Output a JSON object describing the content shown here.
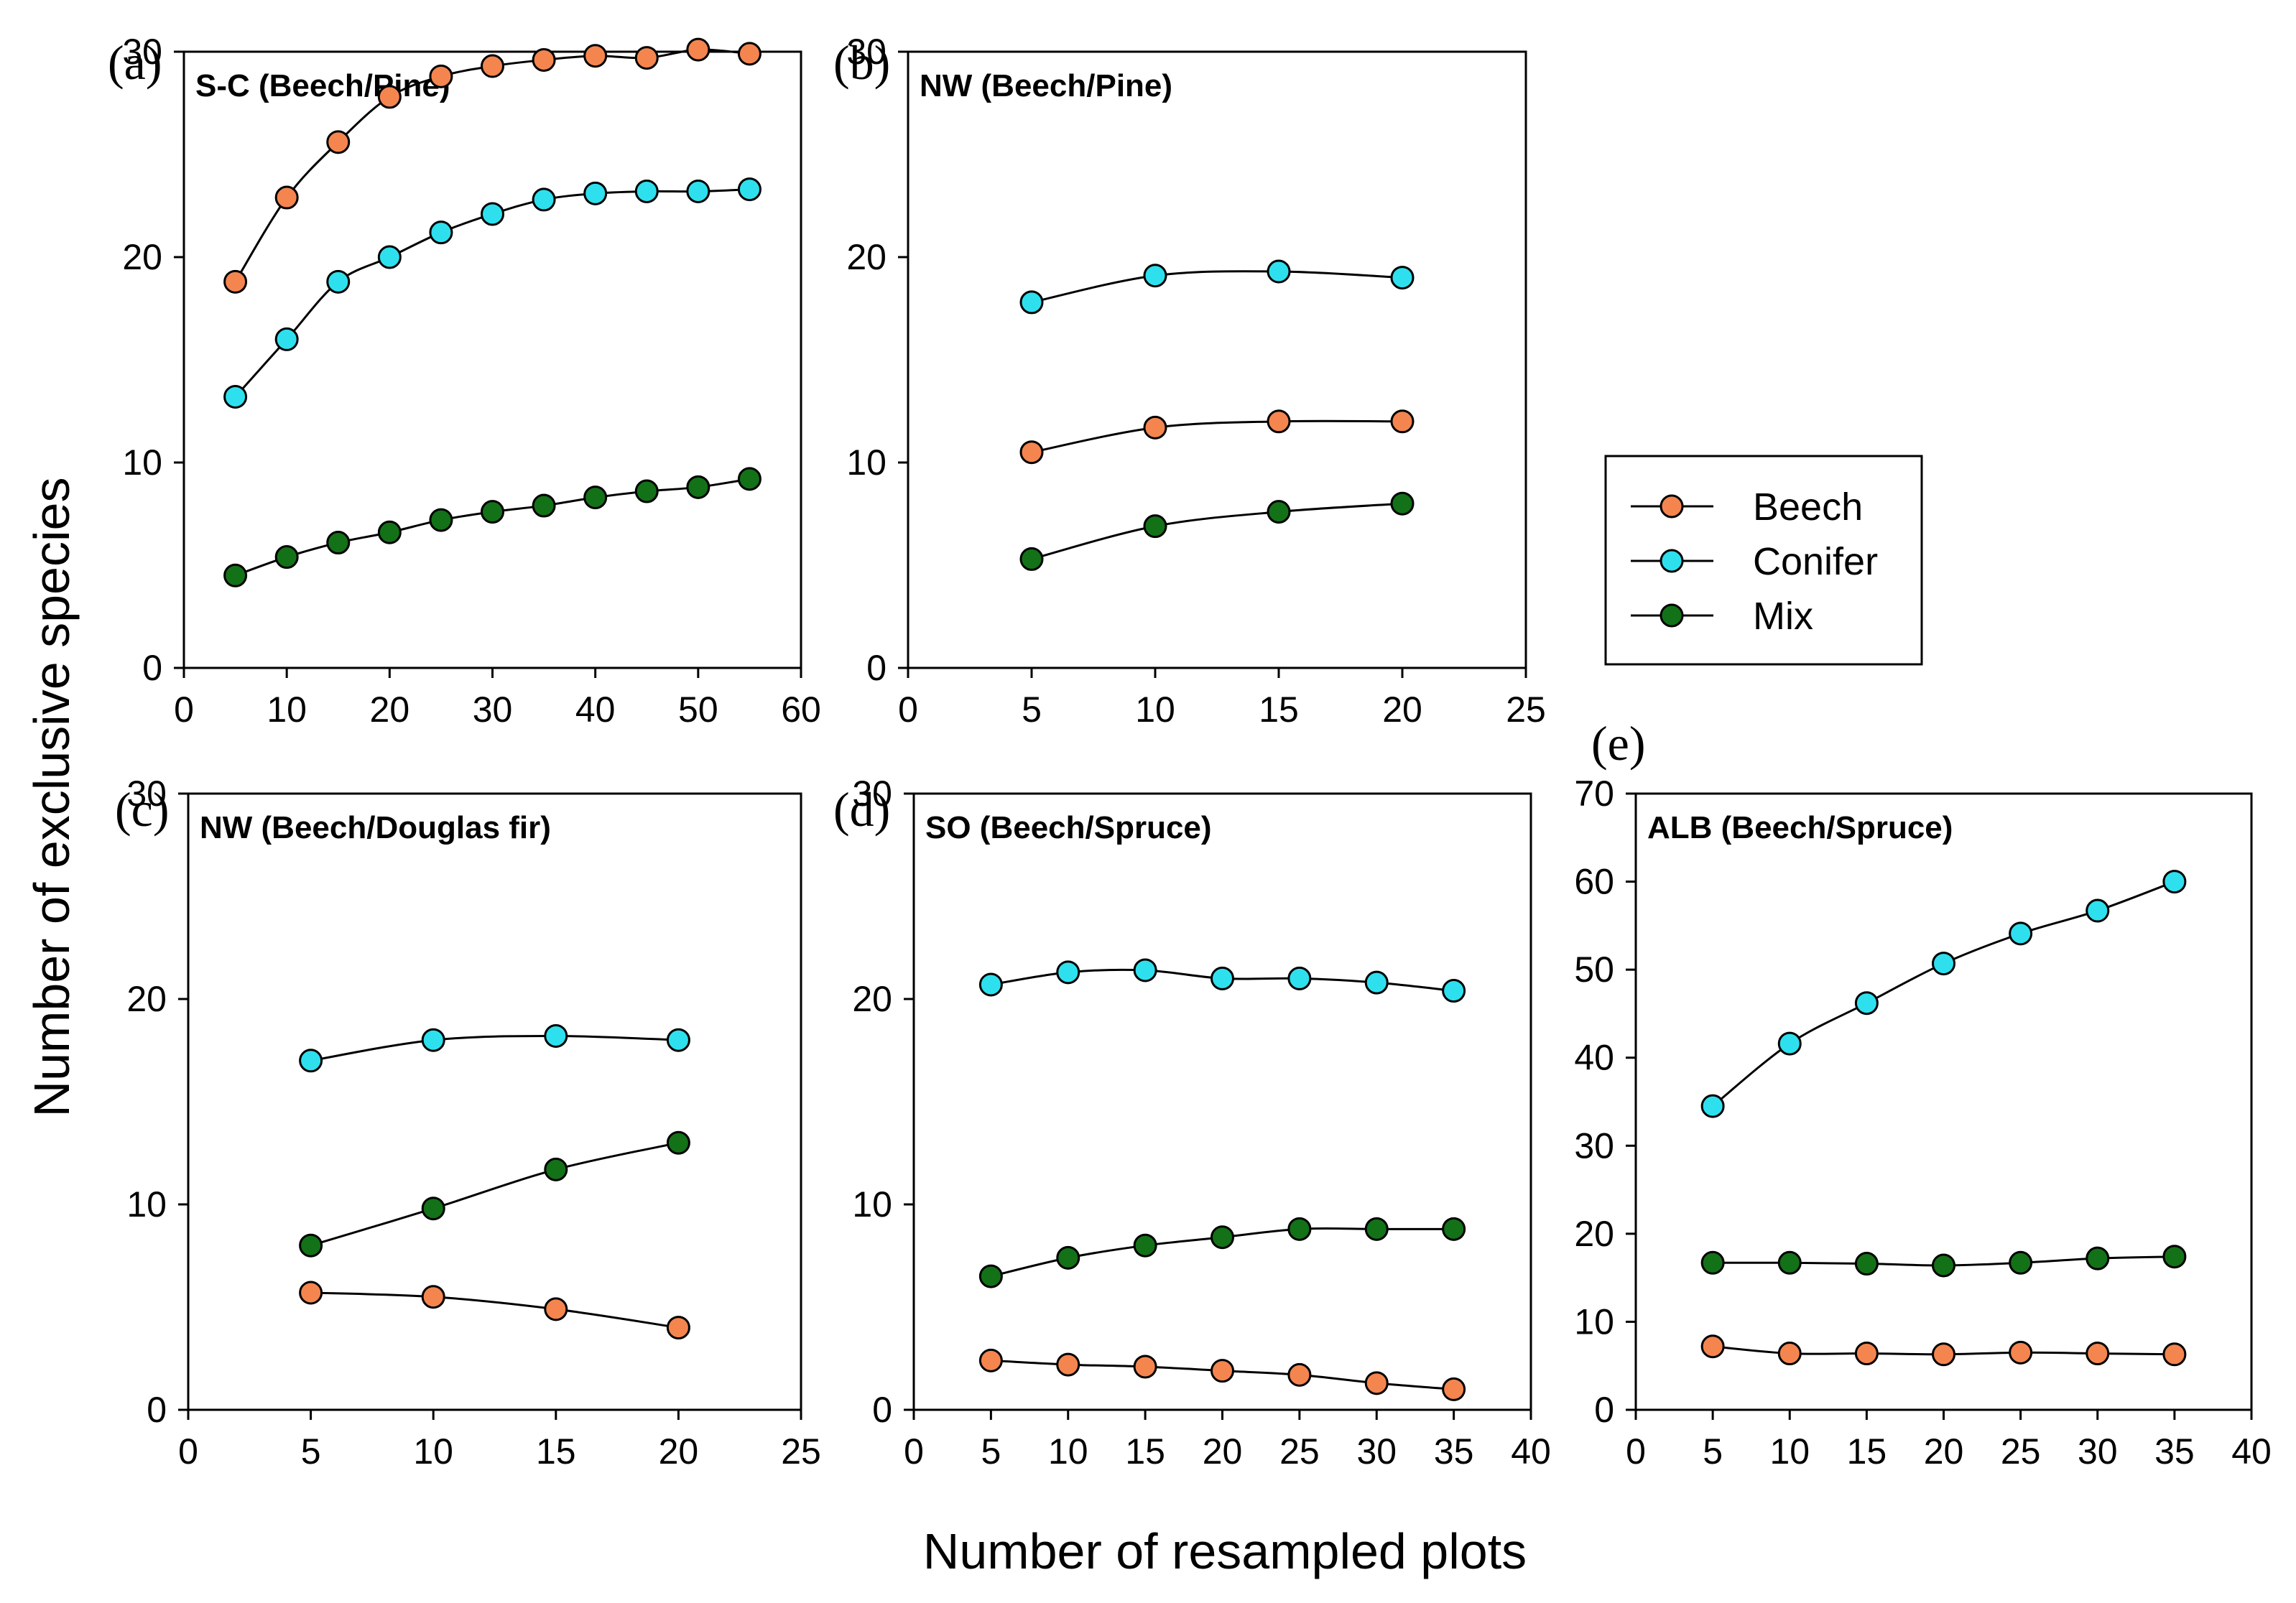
{
  "colors": {
    "Beech": "#F4854F",
    "Conifer": "#2EE0EE",
    "Mix": "#137117"
  },
  "chart_data": {
    "type": "line",
    "xlabel": "Number of resampled plots",
    "ylabel": "Number of exclusive species",
    "legend": {
      "position": "right-middle",
      "entries": [
        "Beech",
        "Conifer",
        "Mix"
      ]
    },
    "panels": [
      {
        "label": "(a)",
        "title": "S-C (Beech/Pine)",
        "xlim": [
          0,
          60
        ],
        "ylim": [
          0,
          30
        ],
        "xticks": [
          0,
          10,
          20,
          30,
          40,
          50,
          60
        ],
        "yticks": [
          0,
          10,
          20,
          30
        ],
        "x": [
          5,
          10,
          15,
          20,
          25,
          30,
          35,
          40,
          45,
          50,
          55
        ],
        "series": [
          {
            "name": "Beech",
            "values": [
              18.8,
              22.9,
              25.6,
              27.8,
              28.8,
              29.3,
              29.6,
              29.8,
              29.7,
              30.1,
              29.9
            ]
          },
          {
            "name": "Conifer",
            "values": [
              13.2,
              16.0,
              18.8,
              20.0,
              21.2,
              22.1,
              22.8,
              23.1,
              23.2,
              23.2,
              23.3
            ]
          },
          {
            "name": "Mix",
            "values": [
              4.5,
              5.4,
              6.1,
              6.6,
              7.2,
              7.6,
              7.9,
              8.3,
              8.6,
              8.8,
              9.2
            ]
          }
        ]
      },
      {
        "label": "(b)",
        "title": "NW (Beech/Pine)",
        "xlim": [
          0,
          25
        ],
        "ylim": [
          0,
          30
        ],
        "xticks": [
          0,
          5,
          10,
          15,
          20,
          25
        ],
        "yticks": [
          0,
          10,
          20,
          30
        ],
        "x": [
          5,
          10,
          15,
          20
        ],
        "series": [
          {
            "name": "Beech",
            "values": [
              10.5,
              11.7,
              12.0,
              12.0
            ]
          },
          {
            "name": "Conifer",
            "values": [
              17.8,
              19.1,
              19.3,
              19.0
            ]
          },
          {
            "name": "Mix",
            "values": [
              5.3,
              6.9,
              7.6,
              8.0
            ]
          }
        ]
      },
      {
        "label": "(c)",
        "title": "NW (Beech/Douglas fir)",
        "xlim": [
          0,
          25
        ],
        "ylim": [
          0,
          30
        ],
        "xticks": [
          0,
          5,
          10,
          15,
          20,
          25
        ],
        "yticks": [
          0,
          10,
          20,
          30
        ],
        "x": [
          5,
          10,
          15,
          20
        ],
        "series": [
          {
            "name": "Beech",
            "values": [
              5.7,
              5.5,
              4.9,
              4.0
            ]
          },
          {
            "name": "Conifer",
            "values": [
              17.0,
              18.0,
              18.2,
              18.0
            ]
          },
          {
            "name": "Mix",
            "values": [
              8.0,
              9.8,
              11.7,
              13.0
            ]
          }
        ]
      },
      {
        "label": "(d)",
        "title": "SO (Beech/Spruce)",
        "xlim": [
          0,
          40
        ],
        "ylim": [
          0,
          30
        ],
        "xticks": [
          0,
          5,
          10,
          15,
          20,
          25,
          30,
          35,
          40
        ],
        "yticks": [
          0,
          10,
          20,
          30
        ],
        "x": [
          5,
          10,
          15,
          20,
          25,
          30,
          35
        ],
        "series": [
          {
            "name": "Beech",
            "values": [
              2.4,
              2.2,
              2.1,
              1.9,
              1.7,
              1.3,
              1.0
            ]
          },
          {
            "name": "Conifer",
            "values": [
              20.7,
              21.3,
              21.4,
              21.0,
              21.0,
              20.8,
              20.4
            ]
          },
          {
            "name": "Mix",
            "values": [
              6.5,
              7.4,
              8.0,
              8.4,
              8.8,
              8.8,
              8.8
            ]
          }
        ]
      },
      {
        "label": "(e)",
        "title": "ALB (Beech/Spruce)",
        "xlim": [
          0,
          40
        ],
        "ylim": [
          0,
          70
        ],
        "xticks": [
          0,
          5,
          10,
          15,
          20,
          25,
          30,
          35,
          40
        ],
        "yticks": [
          0,
          10,
          20,
          30,
          40,
          50,
          60,
          70
        ],
        "x": [
          5,
          10,
          15,
          20,
          25,
          30,
          35
        ],
        "series": [
          {
            "name": "Beech",
            "values": [
              7.2,
              6.4,
              6.4,
              6.3,
              6.5,
              6.4,
              6.3
            ]
          },
          {
            "name": "Conifer",
            "values": [
              34.5,
              41.6,
              46.2,
              50.7,
              54.1,
              56.7,
              60.0
            ]
          },
          {
            "name": "Mix",
            "values": [
              16.7,
              16.7,
              16.6,
              16.4,
              16.7,
              17.2,
              17.4
            ]
          }
        ]
      }
    ]
  }
}
